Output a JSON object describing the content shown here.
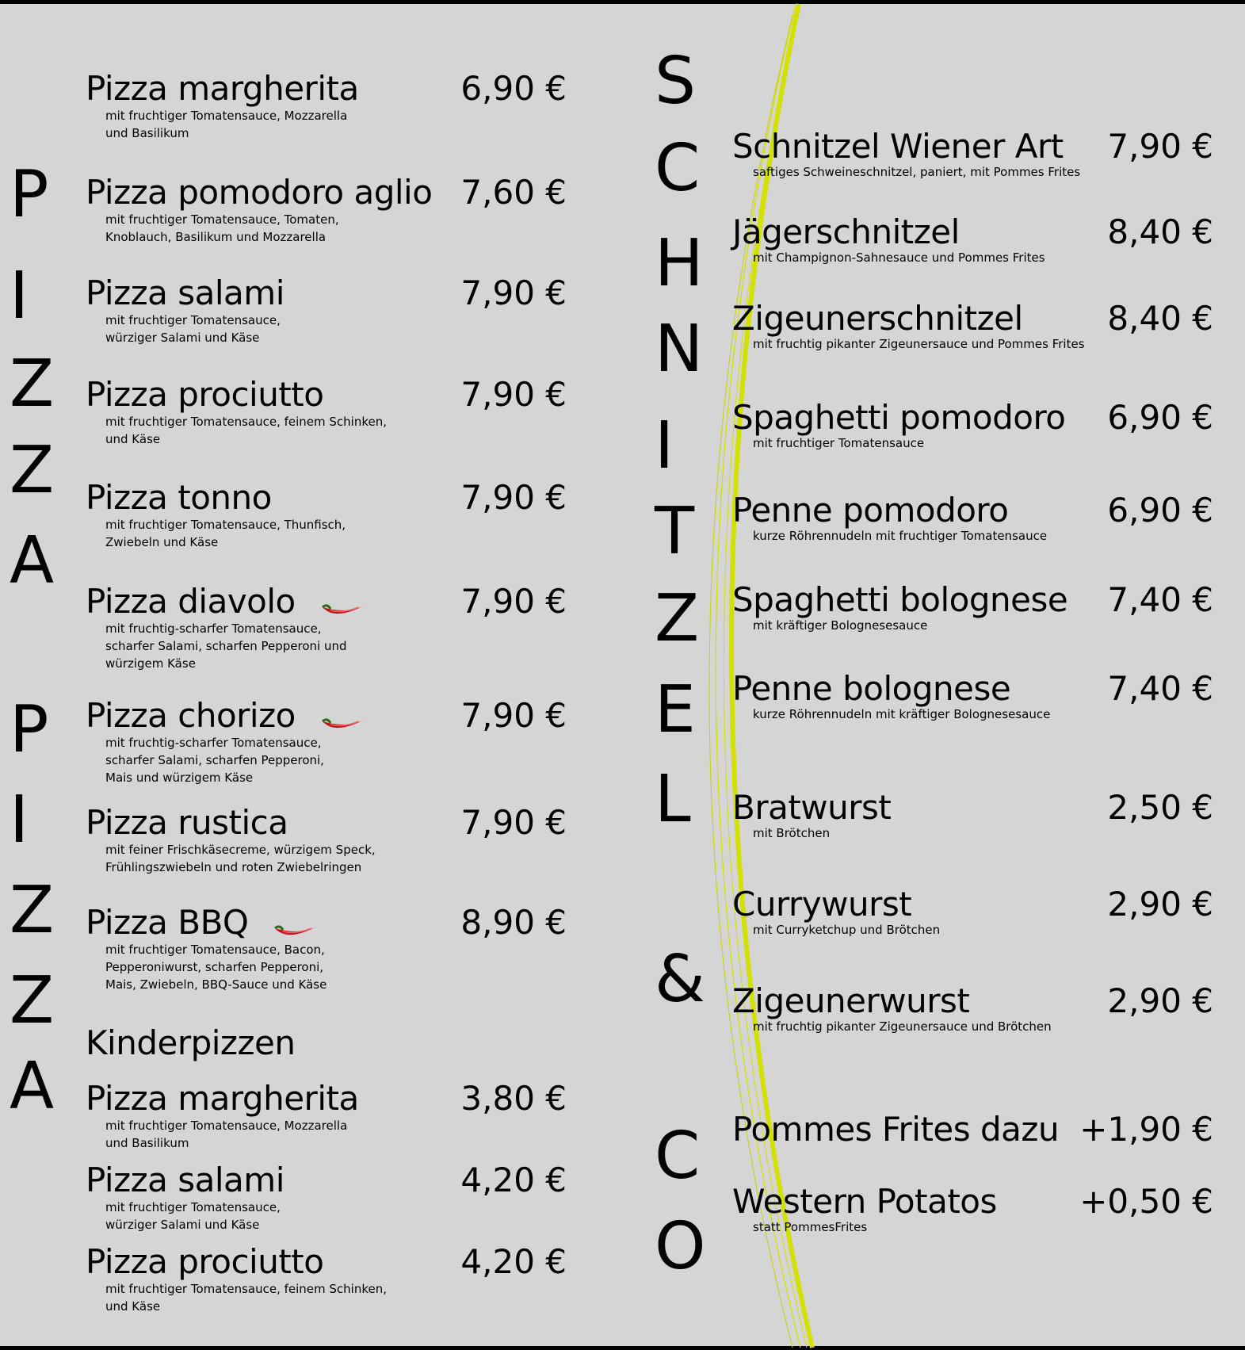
{
  "colors": {
    "background": "#d5d5d5",
    "accent_curve": "#d4e000",
    "chili": "#c0141a"
  },
  "side_letters": {
    "pizza_1": [
      "P",
      "I",
      "Z",
      "Z",
      "A"
    ],
    "pizza_2": [
      "P",
      "I",
      "Z",
      "Z",
      "A"
    ],
    "schnitzel_co": [
      "S",
      "C",
      "H",
      "N",
      "I",
      "T",
      "Z",
      "E",
      "L",
      "&",
      "C",
      "O"
    ]
  },
  "pizza": {
    "items": [
      {
        "name": "Pizza margherita",
        "price": "6,90 €",
        "desc": "mit fruchtiger Tomatensauce, Mozzarella\nund Basilikum",
        "spicy": false
      },
      {
        "name": "Pizza pomodoro aglio",
        "price": "7,60 €",
        "desc": "mit fruchtiger Tomatensauce, Tomaten,\nKnoblauch, Basilikum und Mozzarella",
        "spicy": false
      },
      {
        "name": "Pizza salami",
        "price": "7,90 €",
        "desc": "mit fruchtiger Tomatensauce,\nwürziger Salami und Käse",
        "spicy": false
      },
      {
        "name": "Pizza prociutto",
        "price": "7,90 €",
        "desc": "mit fruchtiger Tomatensauce, feinem Schinken,\nund Käse",
        "spicy": false
      },
      {
        "name": "Pizza tonno",
        "price": "7,90 €",
        "desc": "mit fruchtiger Tomatensauce, Thunfisch,\nZwiebeln und Käse",
        "spicy": false
      },
      {
        "name": "Pizza diavolo",
        "price": "7,90 €",
        "desc": "mit fruchtig-scharfer Tomatensauce,\nscharfer Salami, scharfen Pepperoni und\nwürzigem Käse",
        "spicy": true
      },
      {
        "name": "Pizza chorizo",
        "price": "7,90 €",
        "desc": "mit fruchtig-scharfer Tomatensauce,\nscharfer Salami, scharfen Pepperoni,\nMais und würzigem Käse",
        "spicy": true
      },
      {
        "name": "Pizza rustica",
        "price": "7,90 €",
        "desc": "mit feiner Frischkäsecreme, würzigem Speck,\nFrühlingszwiebeln und roten Zwiebelringen",
        "spicy": false
      },
      {
        "name": "Pizza BBQ",
        "price": "8,90 €",
        "desc": "mit fruchtiger Tomatensauce, Bacon,\nPepperoniwurst, scharfen Pepperoni,\nMais, Zwiebeln, BBQ-Sauce und Käse",
        "spicy": true
      }
    ],
    "kids_heading": "Kinderpizzen",
    "kids_items": [
      {
        "name": "Pizza margherita",
        "price": "3,80 €",
        "desc": "mit fruchtiger Tomatensauce, Mozzarella\nund Basilikum"
      },
      {
        "name": "Pizza salami",
        "price": "4,20 €",
        "desc": "mit fruchtiger Tomatensauce,\nwürziger Salami und Käse"
      },
      {
        "name": "Pizza prociutto",
        "price": "4,20 €",
        "desc": "mit fruchtiger Tomatensauce, feinem Schinken,\nund Käse"
      }
    ]
  },
  "schnitzel": {
    "items": [
      {
        "name": "Schnitzel Wiener Art",
        "price": "7,90 €",
        "desc": "saftiges Schweineschnitzel, paniert, mit Pommes Frites"
      },
      {
        "name": "Jägerschnitzel",
        "price": "8,40 €",
        "desc": "mit Champignon-Sahnesauce und Pommes Frites"
      },
      {
        "name": "Zigeunerschnitzel",
        "price": "8,40 €",
        "desc": "mit fruchtig pikanter Zigeunersauce und Pommes Frites"
      },
      {
        "name": "Spaghetti pomodoro",
        "price": "6,90 €",
        "desc": "mit fruchtiger Tomatensauce"
      },
      {
        "name": "Penne pomodoro",
        "price": "6,90 €",
        "desc": "kurze Röhrennudeln mit fruchtiger Tomatensauce"
      },
      {
        "name": "Spaghetti bolognese",
        "price": "7,40 €",
        "desc": "mit kräftiger Bolognesesauce"
      },
      {
        "name": "Penne bolognese",
        "price": "7,40 €",
        "desc": "kurze Röhrennudeln mit kräftiger Bolognesesauce"
      },
      {
        "name": "Bratwurst",
        "price": "2,50 €",
        "desc": "mit Brötchen"
      },
      {
        "name": "Currywurst",
        "price": "2,90 €",
        "desc": "mit Curryketchup und Brötchen"
      },
      {
        "name": "Zigeunerwurst",
        "price": "2,90 €",
        "desc": "mit fruchtig pikanter Zigeunersauce und Brötchen"
      },
      {
        "name": "Pommes Frites dazu",
        "price": "+1,90 €",
        "desc": ""
      },
      {
        "name": "Western Potatos",
        "price": "+0,50 €",
        "desc": "statt PommesFrites"
      }
    ]
  }
}
